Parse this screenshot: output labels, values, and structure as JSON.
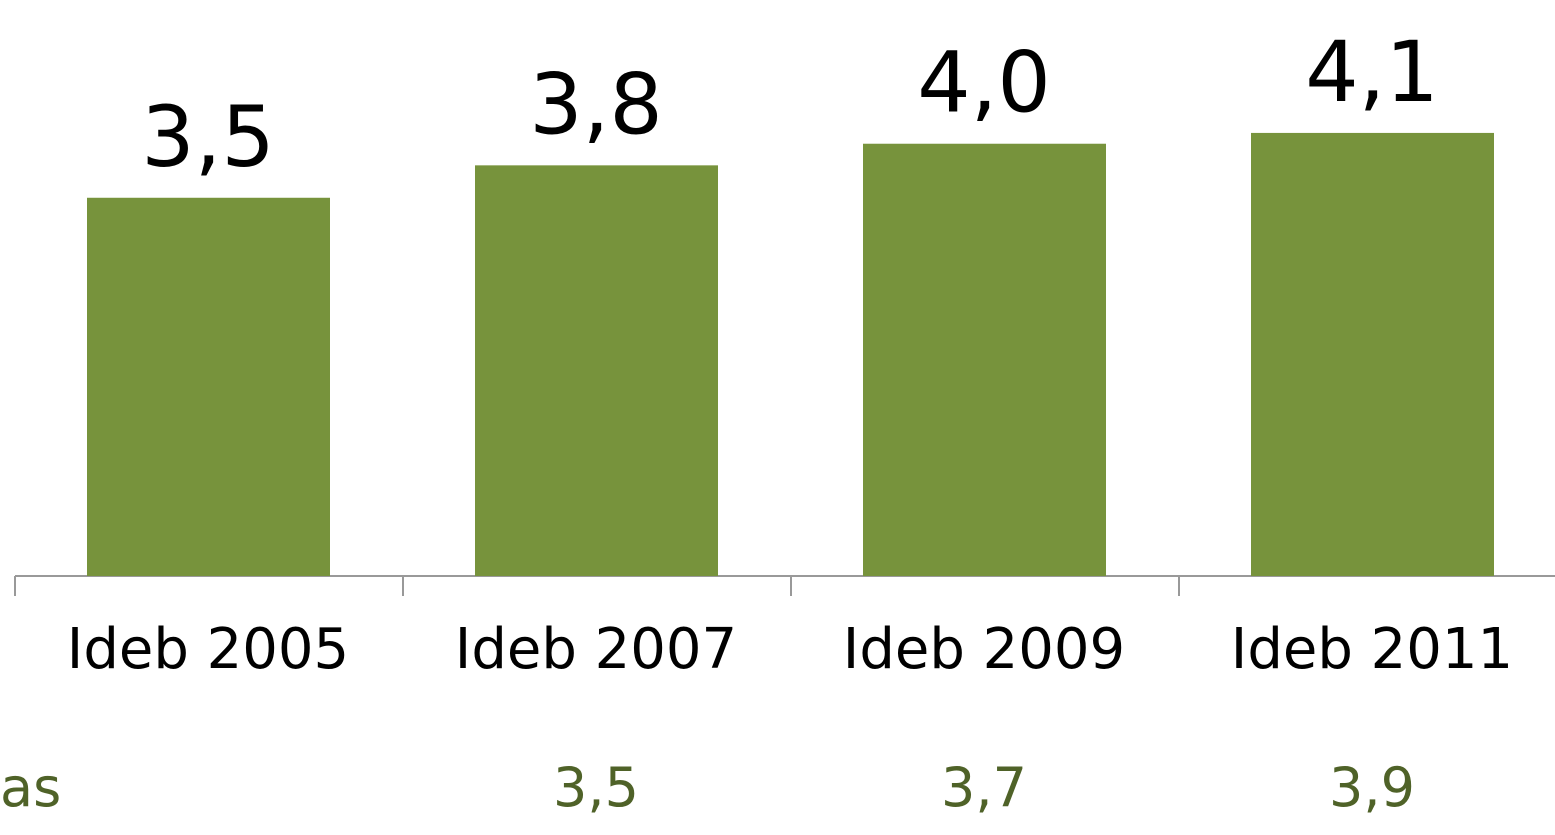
{
  "chart_data": {
    "type": "bar",
    "categories": [
      "Ideb 2005",
      "Ideb 2007",
      "Ideb 2009",
      "Ideb 2011"
    ],
    "values": [
      3.5,
      3.8,
      4.0,
      4.1
    ],
    "value_labels": [
      "3,5",
      "3,8",
      "4,0",
      "4,1"
    ],
    "color": "#77933c",
    "ylim": [
      0,
      5.33
    ],
    "targets": {
      "label": "as",
      "color": "#4f6228",
      "values": [
        null,
        3.5,
        3.7,
        3.9
      ],
      "value_labels": [
        null,
        "3,5",
        "3,7",
        "3,9"
      ]
    }
  }
}
